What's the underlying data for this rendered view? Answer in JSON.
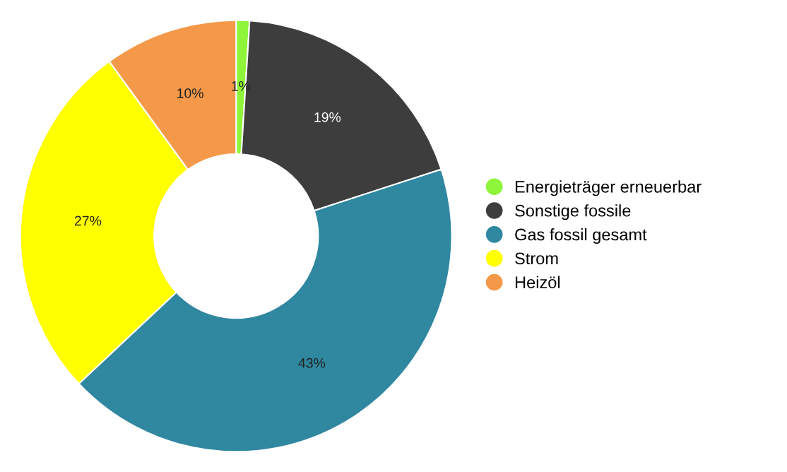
{
  "chart_data": {
    "type": "donut",
    "categories": [
      "Energieträger erneuerbar",
      "Sonstige fossile",
      "Gas fossil gesamt",
      "Strom",
      "Heizöl"
    ],
    "values": [
      1,
      19,
      43,
      27,
      10
    ],
    "colors": [
      "#8ef53a",
      "#3d3d3d",
      "#2f87a0",
      "#ffff00",
      "#f4994a"
    ],
    "value_labels": [
      "1%",
      "19%",
      "43%",
      "27%",
      "10%"
    ],
    "legend": "right"
  }
}
